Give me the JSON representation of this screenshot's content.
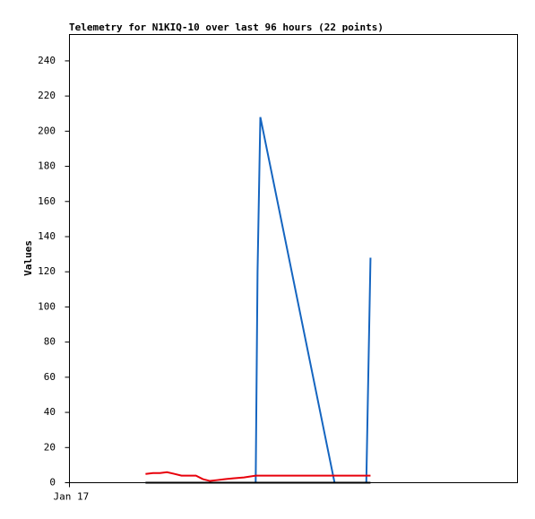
{
  "chart_data": {
    "type": "line",
    "title": "Telemetry for N1KIQ-10 over last 96 hours (22 points)",
    "y_label": "Values",
    "x": [
      16.3,
      17.9,
      19.4,
      20.9,
      22.5,
      24.0,
      25.5,
      27.1,
      28.6,
      30.1,
      31.7,
      33.2,
      35.1,
      37.4,
      39.9,
      40.3,
      40.9,
      56.8,
      58.2,
      61.1,
      63.6,
      64.5
    ],
    "series": [
      {
        "color": "#1565c0",
        "values": [
          0,
          0,
          0,
          0,
          0,
          0,
          0,
          0,
          0,
          0,
          0,
          0,
          0,
          0,
          0,
          120,
          208,
          0,
          0,
          0,
          0,
          128
        ]
      },
      {
        "color": "#e8000b",
        "values": [
          5,
          5.5,
          5.5,
          6,
          5,
          4,
          4,
          4,
          2,
          1,
          1.5,
          2,
          2.5,
          3,
          4,
          4,
          4,
          4,
          4,
          4,
          4,
          4
        ]
      },
      {
        "color": "#000000",
        "values": [
          0,
          0,
          0,
          0,
          0,
          0,
          0,
          0,
          0,
          0,
          0,
          0,
          0,
          0,
          0,
          0,
          0,
          0,
          0,
          0,
          0,
          0
        ]
      }
    ],
    "xlim": [
      0,
      96
    ],
    "xticks": [
      {
        "value": 0,
        "label": "Jan 17"
      }
    ],
    "ylim": [
      0,
      255
    ],
    "yticks": [
      0,
      20,
      40,
      60,
      80,
      100,
      120,
      140,
      160,
      180,
      200,
      220,
      240
    ]
  }
}
